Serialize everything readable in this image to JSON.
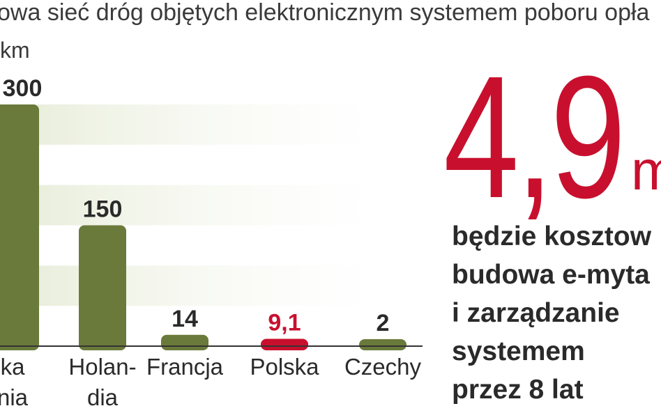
{
  "header": {
    "title": "owa sieć dróg objętych elektronicznym systemem poboru opła",
    "unit": "km"
  },
  "colors": {
    "bar": "#6a7a3a",
    "highlight": "#c8102e",
    "band": "#e6ebd6",
    "axis": "#333333"
  },
  "chart_data": {
    "type": "bar",
    "categories": [
      "ka\nnia",
      "Holan-\ndia",
      "Francja",
      "Polska",
      "Czechy"
    ],
    "values": [
      300,
      150,
      14,
      9.1,
      2
    ],
    "value_labels": [
      "300",
      "150",
      "14",
      "9,1",
      "2"
    ],
    "highlight_index": 3,
    "ylim": [
      0,
      300
    ],
    "grid": "bands"
  },
  "callout": {
    "number": "4,9",
    "unit": "m",
    "text": "będzie kosztow\nbudowa e-myta\ni zarządzanie\nsystemem\nprzez 8 lat"
  }
}
